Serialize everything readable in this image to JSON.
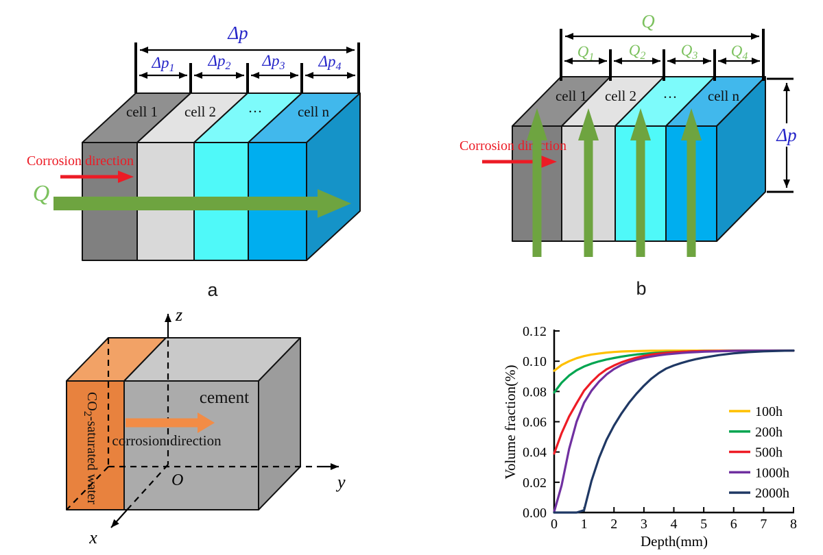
{
  "colors": {
    "slab_gray": "#808080",
    "slab_gray_top": "#909090",
    "slab_light": "#D9D9D9",
    "slab_light_top": "#E3E3E3",
    "slab_cyan": "#4FF9F9",
    "slab_cyan_top": "#7DFBFB",
    "slab_blue": "#00AEEF",
    "slab_blue_top": "#41B8EC",
    "side_blue": "#1593C8",
    "green_arrow": "#6EA440",
    "green_label": "#7CC15E",
    "red": "#EC1B25",
    "blue_label": "#2424C8",
    "orange_front": "#E8823E",
    "orange_top": "#F2A266",
    "orange_arrow": "#F28C46",
    "gray_front": "#ABABAB",
    "gray_top": "#C9C9C9",
    "gray_side": "#9C9C9C",
    "ink": "#000000"
  },
  "panel_a": {
    "label": "a",
    "dim_total": "Δp",
    "dims": [
      {
        "main": "Δp",
        "sub": "1"
      },
      {
        "main": "Δp",
        "sub": "2"
      },
      {
        "main": "Δp",
        "sub": "3"
      },
      {
        "main": "Δp",
        "sub": "4"
      }
    ],
    "cells": [
      "cell 1",
      "cell 2",
      "···",
      "cell n"
    ],
    "corrosion_label": "Corrosion direction",
    "flow_label": "Q"
  },
  "panel_b": {
    "label": "b",
    "dim_total": "Q",
    "dims": [
      {
        "main": "Q",
        "sub": "1"
      },
      {
        "main": "Q",
        "sub": "2"
      },
      {
        "main": "Q",
        "sub": "3"
      },
      {
        "main": "Q",
        "sub": "4"
      }
    ],
    "side_dim": "Δp",
    "cells": [
      "cell 1",
      "cell 2",
      "···",
      "cell n"
    ],
    "corrosion_label": "Corrosion direction"
  },
  "panel_c": {
    "water": {
      "pre": "CO",
      "sub": "2",
      "post": "-saturated water"
    },
    "cement_label": "cement",
    "corrosion_label": "corrosion direction",
    "axes": {
      "x": "x",
      "y": "y",
      "z": "z",
      "origin": "O"
    }
  },
  "chart_data": {
    "type": "line",
    "title": "",
    "xlabel": "Depth(mm)",
    "ylabel": "Volume fraction(%)",
    "xlim": [
      0,
      8
    ],
    "ylim": [
      0,
      0.12
    ],
    "grid": false,
    "legend_position": "right-middle",
    "xticks": [
      {
        "value": 0,
        "label": "0"
      },
      {
        "value": 1,
        "label": "1"
      },
      {
        "value": 2,
        "label": "2"
      },
      {
        "value": 3,
        "label": "3"
      },
      {
        "value": 4,
        "label": "4"
      },
      {
        "value": 5,
        "label": "5"
      },
      {
        "value": 6,
        "label": "6"
      },
      {
        "value": 7,
        "label": "7"
      },
      {
        "value": 8,
        "label": "8"
      }
    ],
    "yticks": [
      {
        "value": 0.0,
        "label": "0.00"
      },
      {
        "value": 0.02,
        "label": "0.02"
      },
      {
        "value": 0.04,
        "label": "0.04"
      },
      {
        "value": 0.06,
        "label": "0.06"
      },
      {
        "value": 0.08,
        "label": "0.08"
      },
      {
        "value": 0.1,
        "label": "0.10"
      },
      {
        "value": 0.12,
        "label": "0.12"
      }
    ],
    "x": [
      0,
      0.25,
      0.5,
      0.75,
      1,
      1.25,
      1.5,
      1.75,
      2,
      2.25,
      2.5,
      2.75,
      3,
      3.25,
      3.5,
      3.75,
      4,
      4.25,
      4.5,
      4.75,
      5,
      5.5,
      6,
      6.5,
      7,
      7.5,
      8
    ],
    "series": [
      {
        "name": "100h",
        "color": "#FFC000",
        "values": [
          0.0937,
          0.0975,
          0.1,
          0.102,
          0.1034,
          0.1044,
          0.1051,
          0.1057,
          0.1061,
          0.1064,
          0.1066,
          0.1067,
          0.1068,
          0.1069,
          0.1069,
          0.107,
          0.107,
          0.107,
          0.107,
          0.107,
          0.107,
          0.107,
          0.107,
          0.107,
          0.107,
          0.107,
          0.107
        ]
      },
      {
        "name": "200h",
        "color": "#00A550",
        "values": [
          0.0793,
          0.0858,
          0.0905,
          0.094,
          0.0965,
          0.0984,
          0.0999,
          0.1011,
          0.1021,
          0.103,
          0.1038,
          0.1044,
          0.1049,
          0.1053,
          0.1056,
          0.1059,
          0.1061,
          0.1063,
          0.1064,
          0.1066,
          0.1067,
          0.1068,
          0.1069,
          0.107,
          0.107,
          0.107,
          0.107
        ]
      },
      {
        "name": "500h",
        "color": "#EE1C25",
        "values": [
          0.039,
          0.0525,
          0.0635,
          0.0722,
          0.0805,
          0.0862,
          0.091,
          0.0946,
          0.0972,
          0.0993,
          0.101,
          0.1024,
          0.1035,
          0.1044,
          0.105,
          0.1055,
          0.1059,
          0.1062,
          0.1064,
          0.1066,
          0.1067,
          0.1068,
          0.1069,
          0.107,
          0.107,
          0.107,
          0.107
        ]
      },
      {
        "name": "1000h",
        "color": "#7030A0",
        "values": [
          0.0005,
          0.018,
          0.042,
          0.06,
          0.0725,
          0.0805,
          0.0865,
          0.0912,
          0.0948,
          0.0975,
          0.0995,
          0.101,
          0.1022,
          0.1031,
          0.1039,
          0.1045,
          0.105,
          0.1054,
          0.1058,
          0.106,
          0.1063,
          0.1066,
          0.1068,
          0.1069,
          0.107,
          0.107,
          0.107
        ]
      },
      {
        "name": "2000h",
        "color": "#1F3864",
        "values": [
          0,
          0,
          0,
          0,
          0.0015,
          0.021,
          0.036,
          0.048,
          0.0575,
          0.0655,
          0.0725,
          0.0785,
          0.0838,
          0.0885,
          0.0922,
          0.0952,
          0.0972,
          0.0988,
          0.1002,
          0.1014,
          0.1024,
          0.104,
          0.1052,
          0.106,
          0.1065,
          0.1068,
          0.107
        ]
      }
    ]
  }
}
